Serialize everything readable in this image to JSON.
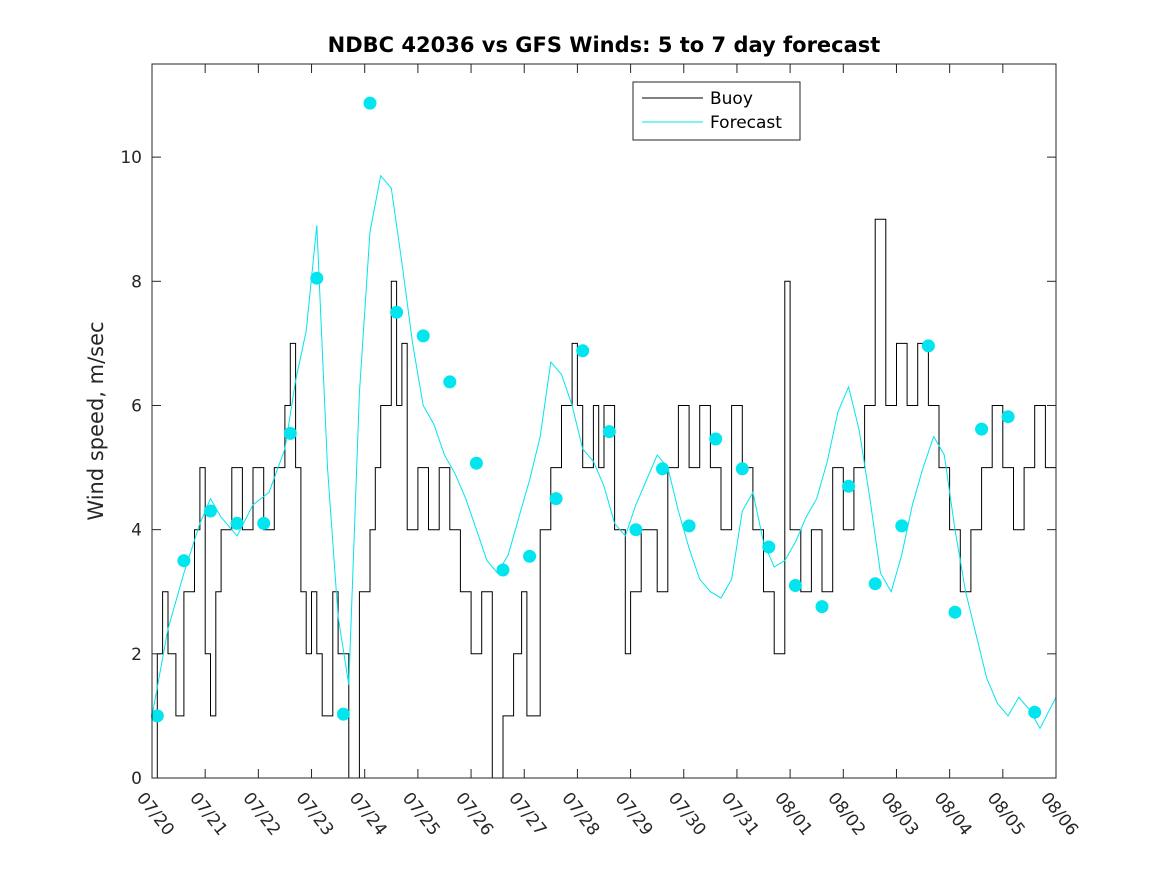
{
  "chart_data": {
    "type": "line",
    "title": "NDBC 42036 vs GFS Winds: 5 to 7 day forecast",
    "xlabel": "",
    "ylabel": "Wind speed, m/sec",
    "xlim": [
      "07/20",
      "08/06"
    ],
    "ylim": [
      0,
      11.5
    ],
    "x_tick_labels": [
      "07/20",
      "07/21",
      "07/22",
      "07/23",
      "07/24",
      "07/25",
      "07/26",
      "07/27",
      "07/28",
      "07/29",
      "07/30",
      "07/31",
      "08/01",
      "08/02",
      "08/03",
      "08/04",
      "08/05",
      "08/06"
    ],
    "y_ticks": [
      0,
      2,
      4,
      6,
      8,
      10
    ],
    "grid": false,
    "legend_position": "top-right",
    "colors": {
      "buoy": "#000000",
      "forecast": "#00e5ee",
      "marker": "#00e5ee"
    },
    "series": [
      {
        "name": "Buoy",
        "style": "step",
        "x_days": [
          0,
          0.1,
          0.2,
          0.3,
          0.45,
          0.6,
          0.8,
          0.9,
          1.0,
          1.1,
          1.2,
          1.3,
          1.5,
          1.7,
          1.9,
          2.1,
          2.3,
          2.5,
          2.6,
          2.7,
          2.8,
          2.9,
          3.0,
          3.1,
          3.2,
          3.4,
          3.5,
          3.7,
          3.9,
          4.1,
          4.2,
          4.3,
          4.5,
          4.6,
          4.7,
          4.8,
          5.0,
          5.2,
          5.4,
          5.6,
          5.8,
          6.0,
          6.2,
          6.4,
          6.6,
          6.8,
          6.95,
          7.05,
          7.3,
          7.5,
          7.7,
          7.9,
          8.0,
          8.1,
          8.3,
          8.4,
          8.5,
          8.7,
          8.9,
          9.0,
          9.2,
          9.5,
          9.7,
          9.9,
          10.1,
          10.3,
          10.5,
          10.7,
          10.9,
          11.1,
          11.3,
          11.5,
          11.7,
          11.9,
          12.0,
          12.2,
          12.4,
          12.6,
          12.8,
          13.0,
          13.2,
          13.4,
          13.6,
          13.8,
          14.0,
          14.2,
          14.4,
          14.6,
          14.8,
          15.0,
          15.2,
          15.4,
          15.6,
          15.8,
          16.0,
          16.2,
          16.4,
          16.6,
          16.8,
          17.0
        ],
        "y": [
          0,
          2,
          3,
          2,
          1,
          3,
          4,
          5,
          2,
          1,
          3,
          4,
          5,
          4,
          5,
          4,
          5,
          6,
          7,
          5,
          3,
          2,
          3,
          2,
          1,
          3,
          2,
          0,
          3,
          4,
          5,
          6,
          8,
          6,
          7,
          4,
          5,
          4,
          5,
          4,
          3,
          2,
          3,
          0,
          1,
          2,
          3,
          1,
          4,
          5,
          6,
          7,
          6,
          5,
          6,
          5,
          6,
          4,
          2,
          3,
          4,
          3,
          5,
          6,
          5,
          6,
          5,
          4,
          6,
          5,
          4,
          3,
          2,
          8,
          4,
          3,
          4,
          3,
          5,
          4,
          5,
          6,
          9,
          6,
          7,
          6,
          7,
          6,
          5,
          4,
          3,
          4,
          5,
          6,
          5,
          4,
          5,
          6,
          5,
          4
        ]
      },
      {
        "name": "Forecast",
        "style": "lines",
        "x_days": [
          0.0,
          0.3,
          0.6,
          0.9,
          1.1,
          1.3,
          1.6,
          1.9,
          2.2,
          2.5,
          2.7,
          2.9,
          3.1,
          3.3,
          3.5,
          3.7,
          3.9,
          4.1,
          4.3,
          4.5,
          4.7,
          4.9,
          5.1,
          5.3,
          5.5,
          5.7,
          5.9,
          6.1,
          6.3,
          6.5,
          6.7,
          6.9,
          7.1,
          7.3,
          7.5,
          7.7,
          7.9,
          8.1,
          8.3,
          8.5,
          8.7,
          8.9,
          9.1,
          9.3,
          9.5,
          9.7,
          9.9,
          10.1,
          10.3,
          10.5,
          10.7,
          10.9,
          11.1,
          11.3,
          11.5,
          11.7,
          11.9,
          12.1,
          12.3,
          12.5,
          12.7,
          12.9,
          13.1,
          13.3,
          13.5,
          13.7,
          13.9,
          14.1,
          14.3,
          14.5,
          14.7,
          14.9,
          15.1,
          15.3,
          15.5,
          15.7,
          15.9,
          16.1,
          16.3,
          16.5,
          16.7,
          17.0
        ],
        "y": [
          1.0,
          2.4,
          3.3,
          4.1,
          4.5,
          4.2,
          3.9,
          4.4,
          4.6,
          5.3,
          6.4,
          7.2,
          8.9,
          5.0,
          2.6,
          1.5,
          6.2,
          8.8,
          9.7,
          9.5,
          8.3,
          7.0,
          6.0,
          5.7,
          5.2,
          4.9,
          4.5,
          4.0,
          3.5,
          3.3,
          3.6,
          4.2,
          4.8,
          5.5,
          6.7,
          6.5,
          6.0,
          5.3,
          5.1,
          4.7,
          4.1,
          3.9,
          4.4,
          4.8,
          5.2,
          5.0,
          4.3,
          3.7,
          3.2,
          3.0,
          2.9,
          3.2,
          4.3,
          4.6,
          3.8,
          3.4,
          3.5,
          3.8,
          4.2,
          4.5,
          5.1,
          5.9,
          6.3,
          5.6,
          4.5,
          3.3,
          3.0,
          3.6,
          4.4,
          5.0,
          5.5,
          5.2,
          4.0,
          3.0,
          2.3,
          1.6,
          1.2,
          1.0,
          1.3,
          1.1,
          0.8,
          1.3
        ]
      }
    ],
    "markers": {
      "x_days": [
        0.1,
        0.6,
        1.1,
        1.6,
        2.1,
        2.6,
        3.1,
        3.6,
        4.1,
        4.6,
        5.1,
        5.6,
        6.1,
        6.6,
        7.1,
        7.6,
        8.1,
        8.6,
        9.1,
        9.6,
        10.1,
        10.6,
        11.1,
        11.6,
        12.1,
        12.6,
        13.1,
        13.6,
        14.1,
        14.6,
        15.1,
        15.6,
        16.1,
        16.6
      ],
      "y": [
        1.0,
        3.5,
        4.3,
        4.1,
        4.1,
        5.55,
        8.05,
        1.03,
        10.87,
        7.5,
        7.12,
        6.38,
        5.07,
        3.35,
        3.57,
        4.5,
        6.88,
        5.58,
        4.0,
        4.98,
        4.06,
        5.46,
        4.98,
        3.72,
        3.1,
        2.76,
        4.7,
        3.13,
        4.06,
        6.96,
        2.67,
        5.62,
        5.82,
        1.06
      ]
    }
  }
}
